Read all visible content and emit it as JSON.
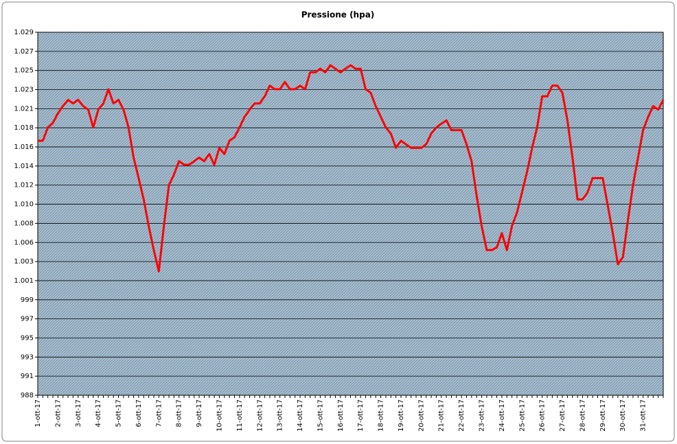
{
  "chart_data": {
    "type": "line",
    "title": "Pressione (hpa)",
    "categories": [
      "1-ott-17",
      null,
      null,
      null,
      "2-ott-17",
      null,
      null,
      null,
      "3-ott-17",
      null,
      null,
      null,
      "4-ott-17",
      null,
      null,
      null,
      "5-ott-17",
      null,
      null,
      null,
      "6-ott-17",
      null,
      null,
      null,
      "7-ott-17",
      null,
      null,
      null,
      "8-ott-17",
      null,
      null,
      null,
      "9-ott-17",
      null,
      null,
      null,
      "10-ott-17",
      null,
      null,
      null,
      "11-ott-17",
      null,
      null,
      null,
      "12-ott-17",
      null,
      null,
      null,
      "13-ott-17",
      null,
      null,
      null,
      "14-ott-17",
      null,
      null,
      null,
      "15-ott-17",
      null,
      null,
      null,
      "16-ott-17",
      null,
      null,
      null,
      "17-ott-17",
      null,
      null,
      null,
      "18-ott-17",
      null,
      null,
      null,
      "19-ott-17",
      null,
      null,
      null,
      "20-ott-17",
      null,
      null,
      null,
      "21-ott-17",
      null,
      null,
      null,
      "22-ott-17",
      null,
      null,
      null,
      "23-ott-17",
      null,
      null,
      null,
      "24-ott-17",
      null,
      null,
      null,
      "25-ott-17",
      null,
      null,
      null,
      "26-ott-17",
      null,
      null,
      null,
      "27-ott-17",
      null,
      null,
      null,
      "28-ott-17",
      null,
      null,
      null,
      "29-ott-17",
      null,
      null,
      null,
      "30-ott-17",
      null,
      null,
      null,
      "31-ott-17",
      null,
      null,
      null,
      null
    ],
    "series": [
      {
        "color": "#ff0000",
        "values": [
          1017.0,
          1017.0,
          1018.5,
          1019.0,
          1020.1,
          1020.9,
          1021.6,
          1021.2,
          1021.6,
          1020.9,
          1020.5,
          1018.5,
          1020.5,
          1021.2,
          1022.8,
          1021.2,
          1021.6,
          1020.5,
          1018.5,
          1015.1,
          1012.8,
          1010.4,
          1007.4,
          1004.7,
          1002.3,
          1007.4,
          1012.0,
          1013.2,
          1014.7,
          1014.3,
          1014.3,
          1014.7,
          1015.1,
          1014.7,
          1015.5,
          1014.3,
          1016.2,
          1015.5,
          1017.0,
          1017.4,
          1018.5,
          1019.7,
          1020.5,
          1021.2,
          1021.2,
          1022.0,
          1023.2,
          1022.8,
          1022.8,
          1023.6,
          1022.8,
          1022.8,
          1023.2,
          1022.8,
          1024.7,
          1024.7,
          1025.1,
          1024.7,
          1025.5,
          1025.1,
          1024.7,
          1025.1,
          1025.5,
          1025.1,
          1025.1,
          1022.8,
          1022.4,
          1020.9,
          1019.7,
          1018.5,
          1017.8,
          1016.2,
          1017.0,
          1016.6,
          1016.2,
          1016.2,
          1016.2,
          1016.6,
          1017.8,
          1018.5,
          1018.9,
          1019.3,
          1018.2,
          1018.2,
          1018.2,
          1016.6,
          1014.7,
          1010.8,
          1007.4,
          1004.7,
          1004.7,
          1005.0,
          1006.6,
          1004.7,
          1007.4,
          1008.9,
          1011.2,
          1013.5,
          1016.2,
          1018.5,
          1022.0,
          1022.0,
          1023.2,
          1023.2,
          1022.4,
          1019.3,
          1015.1,
          1010.4,
          1010.4,
          1011.2,
          1012.8,
          1012.8,
          1012.8,
          1009.7,
          1006.6,
          1003.1,
          1003.9,
          1008.1,
          1012.0,
          1015.1,
          1018.2,
          1019.7,
          1020.9,
          1020.5,
          1021.6
        ]
      }
    ],
    "ylim": [
      988.36,
      1029.21
    ],
    "yticks": [
      {
        "value": 988.36,
        "label": "988"
      },
      {
        "value": 990.51,
        "label": "991"
      },
      {
        "value": 992.66,
        "label": "993"
      },
      {
        "value": 994.81,
        "label": "995"
      },
      {
        "value": 996.96,
        "label": "997"
      },
      {
        "value": 999.11,
        "label": "999"
      },
      {
        "value": 1001.26,
        "label": "1.001"
      },
      {
        "value": 1003.41,
        "label": "1.003"
      },
      {
        "value": 1005.56,
        "label": "1.006"
      },
      {
        "value": 1007.71,
        "label": "1.008"
      },
      {
        "value": 1009.86,
        "label": "1.010"
      },
      {
        "value": 1012.01,
        "label": "1.012"
      },
      {
        "value": 1014.16,
        "label": "1.014"
      },
      {
        "value": 1016.31,
        "label": "1.016"
      },
      {
        "value": 1018.46,
        "label": "1.018"
      },
      {
        "value": 1020.61,
        "label": "1.021"
      },
      {
        "value": 1022.76,
        "label": "1.023"
      },
      {
        "value": 1024.91,
        "label": "1.025"
      },
      {
        "value": 1027.06,
        "label": "1.027"
      },
      {
        "value": 1029.21,
        "label": "1.029"
      }
    ],
    "grid": true
  }
}
